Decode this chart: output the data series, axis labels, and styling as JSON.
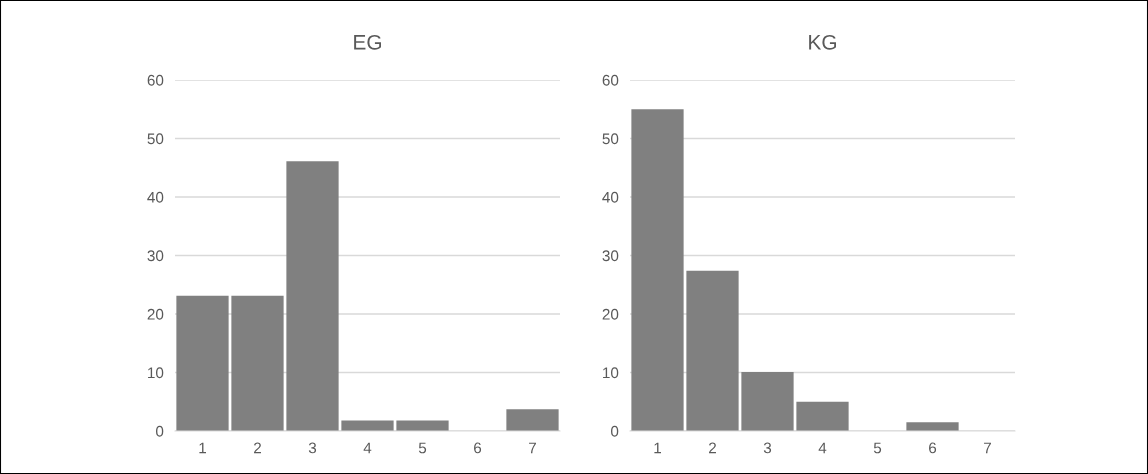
{
  "chart_data": [
    {
      "type": "bar",
      "title": "EG",
      "categories": [
        "1",
        "2",
        "3",
        "4",
        "5",
        "6",
        "7"
      ],
      "values": [
        23.1,
        23.1,
        46.1,
        1.8,
        1.8,
        0,
        3.7
      ],
      "color": "#808080",
      "ylim": [
        0,
        60
      ],
      "yticks": [
        0,
        10,
        20,
        30,
        40,
        50,
        60
      ],
      "grid": "y"
    },
    {
      "type": "bar",
      "title": "KG",
      "categories": [
        "1",
        "2",
        "3",
        "4",
        "5",
        "6",
        "7"
      ],
      "values": [
        55.0,
        27.4,
        10.1,
        5.0,
        0,
        1.5,
        0
      ],
      "color": "#808080",
      "ylim": [
        0,
        60
      ],
      "yticks": [
        0,
        10,
        20,
        30,
        40,
        50,
        60
      ],
      "grid": "y"
    }
  ]
}
